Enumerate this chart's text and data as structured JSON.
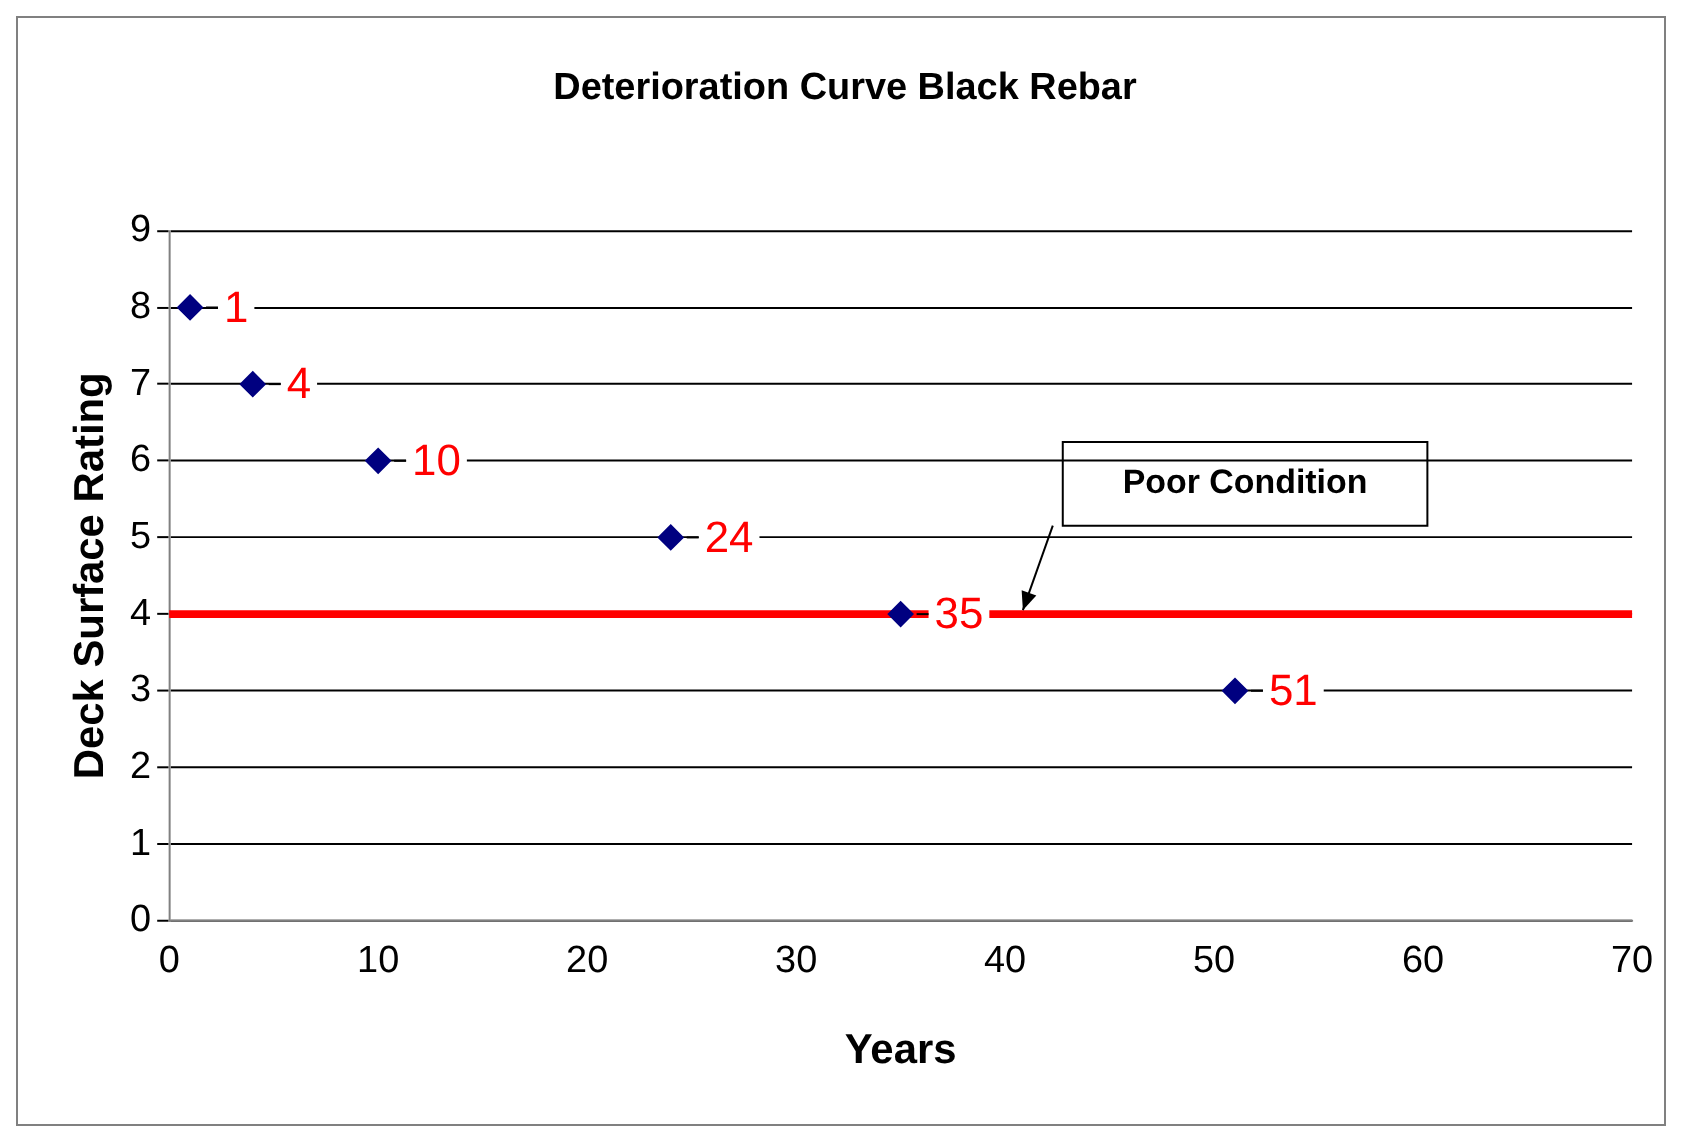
{
  "chart_data": {
    "type": "scatter",
    "title": "Deterioration Curve Black Rebar",
    "xlabel": "Years",
    "ylabel": "Deck Surface Rating",
    "x": [
      1,
      4,
      10,
      24,
      35,
      51
    ],
    "values": [
      8,
      7,
      6,
      5,
      4,
      3
    ],
    "color": "#000080",
    "marker": "diamond",
    "xlim": [
      0,
      70
    ],
    "xticks": [
      0,
      10,
      20,
      30,
      40,
      50,
      60,
      70
    ],
    "ylim": [
      0,
      9
    ],
    "yticks": [
      0,
      1,
      2,
      3,
      4,
      5,
      6,
      7,
      8,
      9
    ],
    "grid": "y",
    "ref_lines": [
      {
        "axis": "y",
        "value": 4,
        "color": "#ff0000"
      }
    ],
    "annotations": [
      "Poor Condition",
      {
        "text": "1",
        "x": 1,
        "y": 8
      },
      {
        "text": "4",
        "x": 4,
        "y": 7
      },
      {
        "text": "10",
        "x": 10,
        "y": 6
      },
      {
        "text": "24",
        "x": 24,
        "y": 5
      },
      {
        "text": "35",
        "x": 35,
        "y": 4
      },
      {
        "text": "51",
        "x": 51,
        "y": 3
      }
    ]
  }
}
